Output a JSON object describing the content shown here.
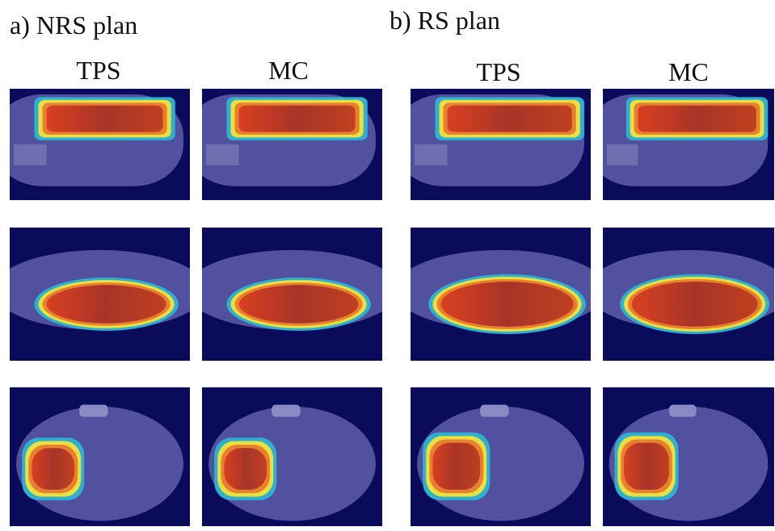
{
  "panels": [
    {
      "title": "a) NRS plan",
      "columns": [
        "TPS",
        "MC"
      ]
    },
    {
      "title": "b) RS plan",
      "columns": [
        "TPS",
        "MC"
      ]
    }
  ]
}
